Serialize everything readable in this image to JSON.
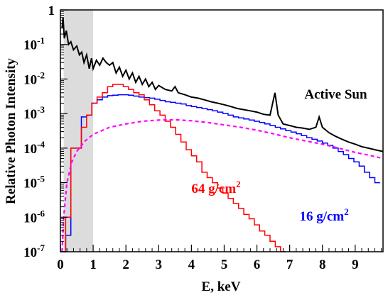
{
  "chart_data": {
    "type": "line",
    "xlabel": "E, keV",
    "ylabel": "Relative Photon Intensity",
    "xlim": [
      0,
      9.85
    ],
    "ylim": [
      1e-07,
      1
    ],
    "y_scale": "log",
    "x_ticks": [
      0,
      1,
      2,
      3,
      4,
      5,
      6,
      7,
      8,
      9
    ],
    "y_ticks": [
      {
        "value": 1,
        "base": "1",
        "exp": ""
      },
      {
        "value": 0.1,
        "base": "10",
        "exp": "-1"
      },
      {
        "value": 0.01,
        "base": "10",
        "exp": "-2"
      },
      {
        "value": 0.001,
        "base": "10",
        "exp": "-3"
      },
      {
        "value": 0.0001,
        "base": "10",
        "exp": "-4"
      },
      {
        "value": 1e-05,
        "base": "10",
        "exp": "-5"
      },
      {
        "value": 1e-06,
        "base": "10",
        "exp": "-6"
      },
      {
        "value": 1e-07,
        "base": "10",
        "exp": "-7"
      }
    ],
    "shaded_band": {
      "x0": 0.1,
      "x1": 1.0,
      "color": "#dcdcdc"
    },
    "grid": false,
    "series": [
      {
        "name": "Active Sun",
        "color": "#000000",
        "style": "jagged",
        "points": [
          [
            0.05,
            0.3
          ],
          [
            0.08,
            0.6
          ],
          [
            0.12,
            0.15
          ],
          [
            0.18,
            0.25
          ],
          [
            0.25,
            0.1
          ],
          [
            0.32,
            0.12
          ],
          [
            0.4,
            0.07
          ],
          [
            0.5,
            0.09
          ],
          [
            0.58,
            0.05
          ],
          [
            0.65,
            0.06
          ],
          [
            0.72,
            0.03
          ],
          [
            0.8,
            0.05
          ],
          [
            0.88,
            0.02
          ],
          [
            0.95,
            0.04
          ],
          [
            1.0,
            0.02
          ],
          [
            1.1,
            0.035
          ],
          [
            1.2,
            0.025
          ],
          [
            1.3,
            0.04
          ],
          [
            1.4,
            0.03
          ],
          [
            1.5,
            0.025
          ],
          [
            1.6,
            0.03
          ],
          [
            1.7,
            0.015
          ],
          [
            1.8,
            0.022
          ],
          [
            1.9,
            0.012
          ],
          [
            2.0,
            0.018
          ],
          [
            2.1,
            0.01
          ],
          [
            2.2,
            0.015
          ],
          [
            2.3,
            0.008
          ],
          [
            2.4,
            0.012
          ],
          [
            2.5,
            0.007
          ],
          [
            2.6,
            0.01
          ],
          [
            2.7,
            0.006
          ],
          [
            2.8,
            0.008
          ],
          [
            2.9,
            0.005
          ],
          [
            3.0,
            0.0065
          ],
          [
            3.2,
            0.005
          ],
          [
            3.4,
            0.0045
          ],
          [
            3.5,
            0.006
          ],
          [
            3.6,
            0.004
          ],
          [
            3.8,
            0.0035
          ],
          [
            4.0,
            0.003
          ],
          [
            4.2,
            0.0028
          ],
          [
            4.4,
            0.0025
          ],
          [
            4.6,
            0.0022
          ],
          [
            4.8,
            0.002
          ],
          [
            5.0,
            0.0018
          ],
          [
            5.2,
            0.0016
          ],
          [
            5.4,
            0.0014
          ],
          [
            5.6,
            0.0013
          ],
          [
            5.8,
            0.0012
          ],
          [
            6.0,
            0.0011
          ],
          [
            6.2,
            0.00095
          ],
          [
            6.4,
            0.0009
          ],
          [
            6.55,
            0.004
          ],
          [
            6.65,
            0.0009
          ],
          [
            6.8,
            0.0005
          ],
          [
            7.0,
            0.00045
          ],
          [
            7.2,
            0.0004
          ],
          [
            7.4,
            0.00038
          ],
          [
            7.6,
            0.00035
          ],
          [
            7.8,
            0.0004
          ],
          [
            7.9,
            0.0008
          ],
          [
            8.0,
            0.0004
          ],
          [
            8.2,
            0.00028
          ],
          [
            8.4,
            0.00022
          ],
          [
            8.6,
            0.00018
          ],
          [
            8.8,
            0.00015
          ],
          [
            9.0,
            0.00013
          ],
          [
            9.2,
            0.00011
          ],
          [
            9.4,
            0.0001
          ],
          [
            9.6,
            9e-05
          ],
          [
            9.85,
            8e-05
          ]
        ]
      },
      {
        "name": "16 g/cm",
        "label_exp": "2",
        "color": "#0000ff",
        "style": "step",
        "bin_width": 0.16,
        "bins_start": 0.0,
        "bin_values": [
          1e-07,
          3e-07,
          0.0001,
          0.0001,
          0.0008,
          0.0009,
          0.002,
          0.0025,
          0.003,
          0.0033,
          0.0034,
          0.0035,
          0.0035,
          0.0034,
          0.0032,
          0.003,
          0.0029,
          0.0028,
          0.0026,
          0.0024,
          0.0022,
          0.0021,
          0.002,
          0.0019,
          0.0017,
          0.0016,
          0.0015,
          0.0014,
          0.0013,
          0.0012,
          0.0011,
          0.001,
          0.0009,
          0.0008,
          0.00075,
          0.0007,
          0.00065,
          0.0006,
          0.00055,
          0.0005,
          0.00045,
          0.0004,
          0.00036,
          0.00032,
          0.00029,
          0.00026,
          0.00023,
          0.0002,
          0.00018,
          0.00016,
          0.00014,
          0.00012,
          0.0001,
          8e-05,
          6.5e-05,
          5e-05,
          4e-05,
          3e-05,
          2e-05,
          1.4e-05,
          1e-05
        ]
      },
      {
        "name": "64 g/cm",
        "label_exp": "2",
        "color": "#ff0000",
        "style": "step",
        "bin_width": 0.16,
        "bins_start": 0.0,
        "bin_values": [
          1e-07,
          1e-06,
          0.0001,
          0.0001,
          0.0004,
          0.0009,
          0.002,
          0.003,
          0.004,
          0.006,
          0.007,
          0.007,
          0.006,
          0.005,
          0.004,
          0.0035,
          0.0025,
          0.0018,
          0.0012,
          0.0009,
          0.0006,
          0.0004,
          0.00025,
          0.00015,
          9e-05,
          6e-05,
          4e-05,
          2e-05,
          1.4e-05,
          1e-05,
          7e-06,
          5e-06,
          3.5e-06,
          2.5e-06,
          1.8e-06,
          1.2e-06,
          9e-07,
          6e-07,
          4e-07,
          3e-07,
          2e-07,
          1.4e-07,
          1e-07
        ]
      },
      {
        "name": "",
        "color": "#ff00ff",
        "style": "dashed",
        "points": [
          [
            0.05,
            1e-07
          ],
          [
            0.1,
            1e-06
          ],
          [
            0.2,
            1e-05
          ],
          [
            0.35,
            4e-05
          ],
          [
            0.5,
            8e-05
          ],
          [
            0.75,
            0.00016
          ],
          [
            1.0,
            0.00025
          ],
          [
            1.5,
            0.0004
          ],
          [
            2.0,
            0.0005
          ],
          [
            2.5,
            0.0006
          ],
          [
            3.0,
            0.00065
          ],
          [
            3.5,
            0.00066
          ],
          [
            4.0,
            0.00062
          ],
          [
            4.5,
            0.00055
          ],
          [
            5.0,
            0.00047
          ],
          [
            5.5,
            0.0004
          ],
          [
            6.0,
            0.00033
          ],
          [
            6.5,
            0.00026
          ],
          [
            7.0,
            0.0002
          ],
          [
            7.5,
            0.00016
          ],
          [
            8.0,
            0.00013
          ],
          [
            8.5,
            0.0001
          ],
          [
            9.0,
            7.5e-05
          ],
          [
            9.5,
            6e-05
          ],
          [
            9.85,
            5e-05
          ]
        ]
      }
    ],
    "annotations": [
      {
        "text": "Active Sun",
        "color": "#000000",
        "at_x": 7.45,
        "at_y": 0.0027
      },
      {
        "text": "64 g/cm",
        "exp": "2",
        "color": "#ff0000",
        "at_x": 4.0,
        "at_y": 5e-06
      },
      {
        "text": "16 g/cm",
        "exp": "2",
        "color": "#0000ff",
        "at_x": 7.3,
        "at_y": 8e-07
      }
    ]
  }
}
